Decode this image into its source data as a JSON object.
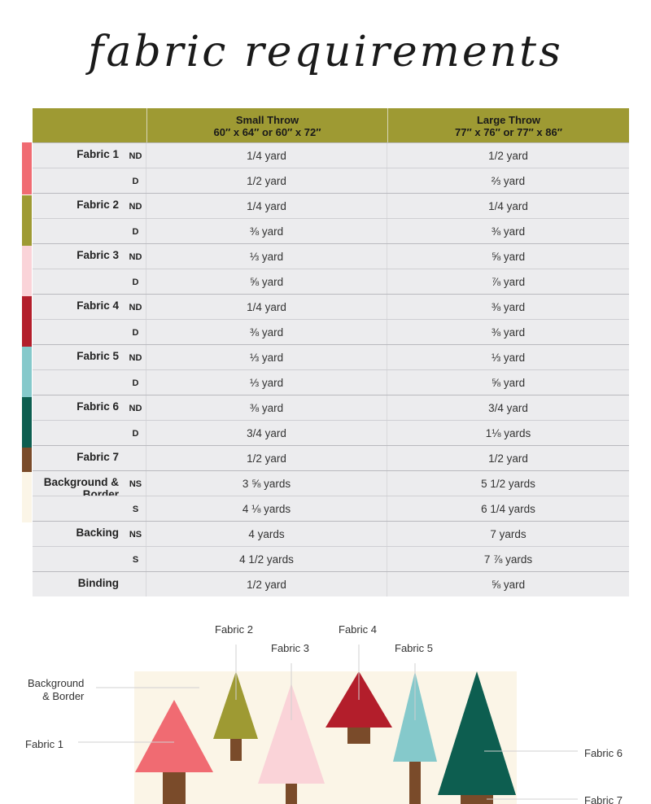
{
  "title": "fabric requirements",
  "colors": {
    "header": "#9e9a33",
    "fabric1": "#f06b72",
    "fabric2": "#9e9a33",
    "fabric3": "#fad3d8",
    "fabric4": "#b31e2b",
    "fabric5": "#85c9cb",
    "fabric6": "#0d5e50",
    "fabric7": "#7a4b2a",
    "background": "#fbf5e7"
  },
  "table": {
    "columns": [
      {
        "name": "Small Throw",
        "size": "60″ x 64″ or 60″ x 72″"
      },
      {
        "name": "Large Throw",
        "size": "77″ x 76″ or 77″ x 86″"
      }
    ],
    "groups": [
      {
        "label": "Fabric 1",
        "rows": [
          {
            "sub": "ND",
            "small": "1/4 yard",
            "large": "1/2 yard"
          },
          {
            "sub": "D",
            "small": "1/2 yard",
            "large": "⅔ yard"
          }
        ]
      },
      {
        "label": "Fabric 2",
        "rows": [
          {
            "sub": "ND",
            "small": "1/4 yard",
            "large": "1/4 yard"
          },
          {
            "sub": "D",
            "small": "⅜ yard",
            "large": "⅜ yard"
          }
        ]
      },
      {
        "label": "Fabric 3",
        "rows": [
          {
            "sub": "ND",
            "small": "⅓ yard",
            "large": "⅝ yard"
          },
          {
            "sub": "D",
            "small": "⅝ yard",
            "large": "⅞ yard"
          }
        ]
      },
      {
        "label": "Fabric 4",
        "rows": [
          {
            "sub": "ND",
            "small": "1/4 yard",
            "large": "⅜ yard"
          },
          {
            "sub": "D",
            "small": "⅜ yard",
            "large": "⅜ yard"
          }
        ]
      },
      {
        "label": "Fabric 5",
        "rows": [
          {
            "sub": "ND",
            "small": "⅓ yard",
            "large": "⅓ yard"
          },
          {
            "sub": "D",
            "small": "⅓ yard",
            "large": "⅝ yard"
          }
        ]
      },
      {
        "label": "Fabric 6",
        "rows": [
          {
            "sub": "ND",
            "small": "⅜ yard",
            "large": "3/4 yard"
          },
          {
            "sub": "D",
            "small": "3/4 yard",
            "large": "1⅛ yards"
          }
        ]
      },
      {
        "label": "Fabric 7",
        "rows": [
          {
            "sub": "",
            "small": "1/2 yard",
            "large": "1/2 yard"
          }
        ]
      },
      {
        "label": "Background & Border",
        "rows": [
          {
            "sub": "NS",
            "small": "3 ⅝ yards",
            "large": "5 1/2 yards"
          },
          {
            "sub": "S",
            "small": "4 ⅛ yards",
            "large": "6 1/4 yards"
          }
        ]
      },
      {
        "label": "Backing",
        "rows": [
          {
            "sub": "NS",
            "small": "4 yards",
            "large": "7 yards"
          },
          {
            "sub": "S",
            "small": "4 1/2 yards",
            "large": "7 ⅞ yards"
          }
        ]
      },
      {
        "label": "Binding",
        "rows": [
          {
            "sub": "",
            "small": "1/2 yard",
            "large": "⅝ yard"
          }
        ]
      }
    ]
  },
  "illustration": {
    "labels": {
      "fabric1": "Fabric 1",
      "fabric2": "Fabric 2",
      "fabric3": "Fabric 3",
      "fabric4": "Fabric 4",
      "fabric5": "Fabric 5",
      "fabric6": "Fabric 6",
      "fabric7": "Fabric 7",
      "background": "Background\n& Border"
    }
  }
}
